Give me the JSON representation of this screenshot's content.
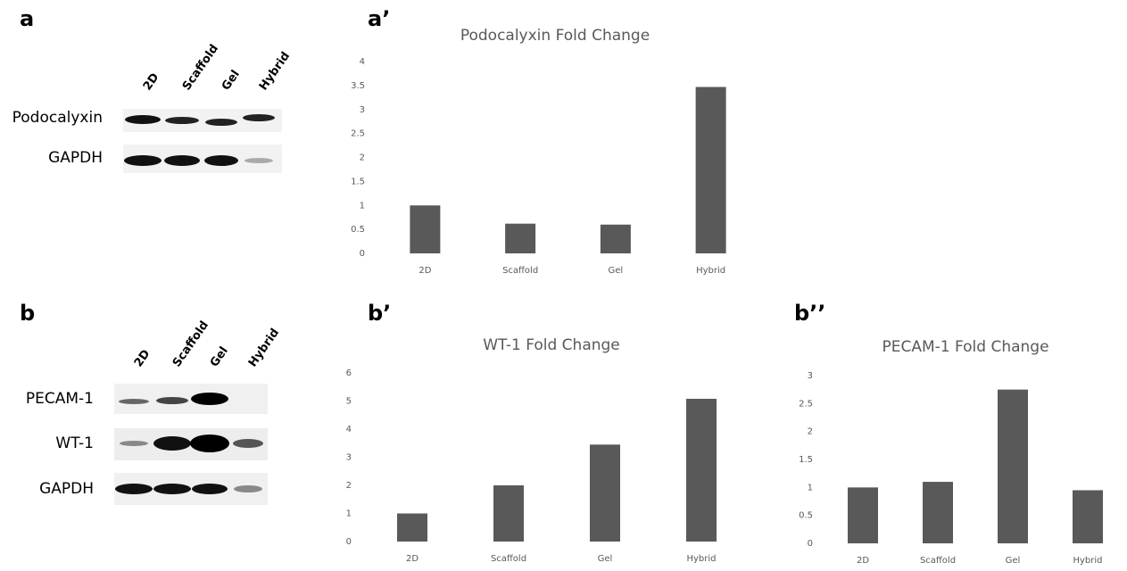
{
  "panel_labels": [
    "a",
    "a’",
    "b",
    "b’",
    "b’’"
  ],
  "blots": [
    {
      "lanes": [
        "2D",
        "Scaffold",
        "Gel",
        "Hybrid"
      ],
      "rows": [
        "Podocalyxin",
        "GAPDH"
      ]
    },
    {
      "lanes": [
        "2D",
        "Scaffold",
        "Gel",
        "Hybrid"
      ],
      "rows": [
        "PECAM-1",
        "WT-1",
        "GAPDH"
      ]
    }
  ],
  "chart_data": [
    {
      "type": "bar",
      "title": "Podocalyxin Fold Change",
      "categories": [
        "2D",
        "Scaffold",
        "Gel",
        "Hybrid"
      ],
      "values": [
        1.0,
        0.62,
        0.6,
        3.47
      ],
      "color": "#595959",
      "ylim": [
        0,
        4
      ],
      "yticks": [
        0,
        0.5,
        1,
        1.5,
        2,
        2.5,
        3,
        3.5,
        4
      ],
      "grid": false
    },
    {
      "type": "bar",
      "title": "WT-1 Fold Change",
      "categories": [
        "2D",
        "Scaffold",
        "Gel",
        "Hybrid"
      ],
      "values": [
        1.0,
        2.0,
        3.45,
        5.08
      ],
      "color": "#595959",
      "ylim": [
        0,
        6
      ],
      "yticks": [
        0,
        1,
        2,
        3,
        4,
        5,
        6
      ],
      "grid": false
    },
    {
      "type": "bar",
      "title": "PECAM-1 Fold Change",
      "categories": [
        "2D",
        "Scaffold",
        "Gel",
        "Hybrid"
      ],
      "values": [
        1.0,
        1.1,
        2.75,
        0.95
      ],
      "color": "#595959",
      "ylim": [
        0,
        3
      ],
      "yticks": [
        0,
        0.5,
        1,
        1.5,
        2,
        2.5,
        3
      ],
      "grid": false
    }
  ]
}
